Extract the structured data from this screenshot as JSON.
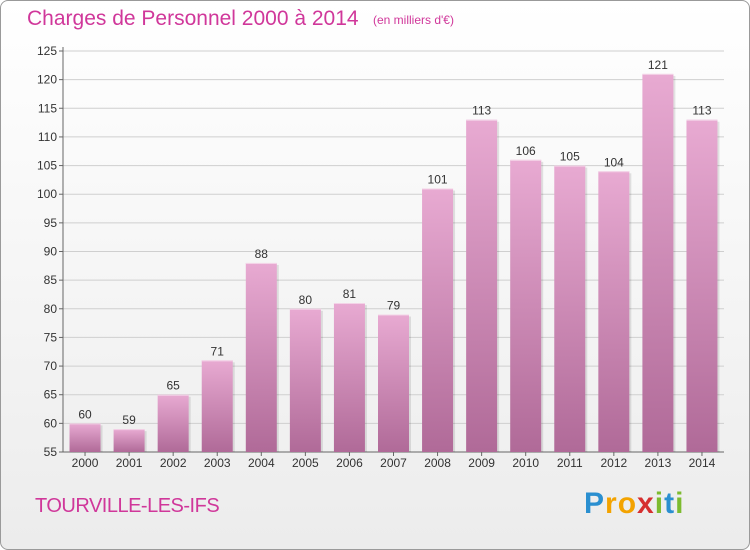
{
  "title": "Charges de Personnel 2000 à 2014",
  "subtitle": "(en milliers d'€)",
  "commune": "TOURVILLE-LES-IFS",
  "logo": {
    "letters": [
      "P",
      "r",
      "o",
      "x",
      "i",
      "t",
      "i"
    ],
    "colors": [
      "#2a8fd0",
      "#f3a300",
      "#f3a300",
      "#d62f2f",
      "#7dbb2f",
      "#2a8fd0",
      "#7dbb2f"
    ]
  },
  "colors": {
    "accent": "#d0379a",
    "bar_top": "#e8aad2",
    "bar_bottom": "#b06a98",
    "grid": "#cfcfcf"
  },
  "chart_data": {
    "type": "bar",
    "categories": [
      "2000",
      "2001",
      "2002",
      "2003",
      "2004",
      "2005",
      "2006",
      "2007",
      "2008",
      "2009",
      "2010",
      "2011",
      "2012",
      "2013",
      "2014"
    ],
    "values": [
      60,
      59,
      65,
      71,
      88,
      80,
      81,
      79,
      101,
      113,
      106,
      105,
      104,
      121,
      113
    ],
    "ylim": [
      55,
      125
    ],
    "yticks": [
      55,
      60,
      65,
      70,
      75,
      80,
      85,
      90,
      95,
      100,
      105,
      110,
      115,
      120,
      125
    ],
    "grid": true,
    "data_labels": true,
    "xlabel": "",
    "ylabel": ""
  }
}
